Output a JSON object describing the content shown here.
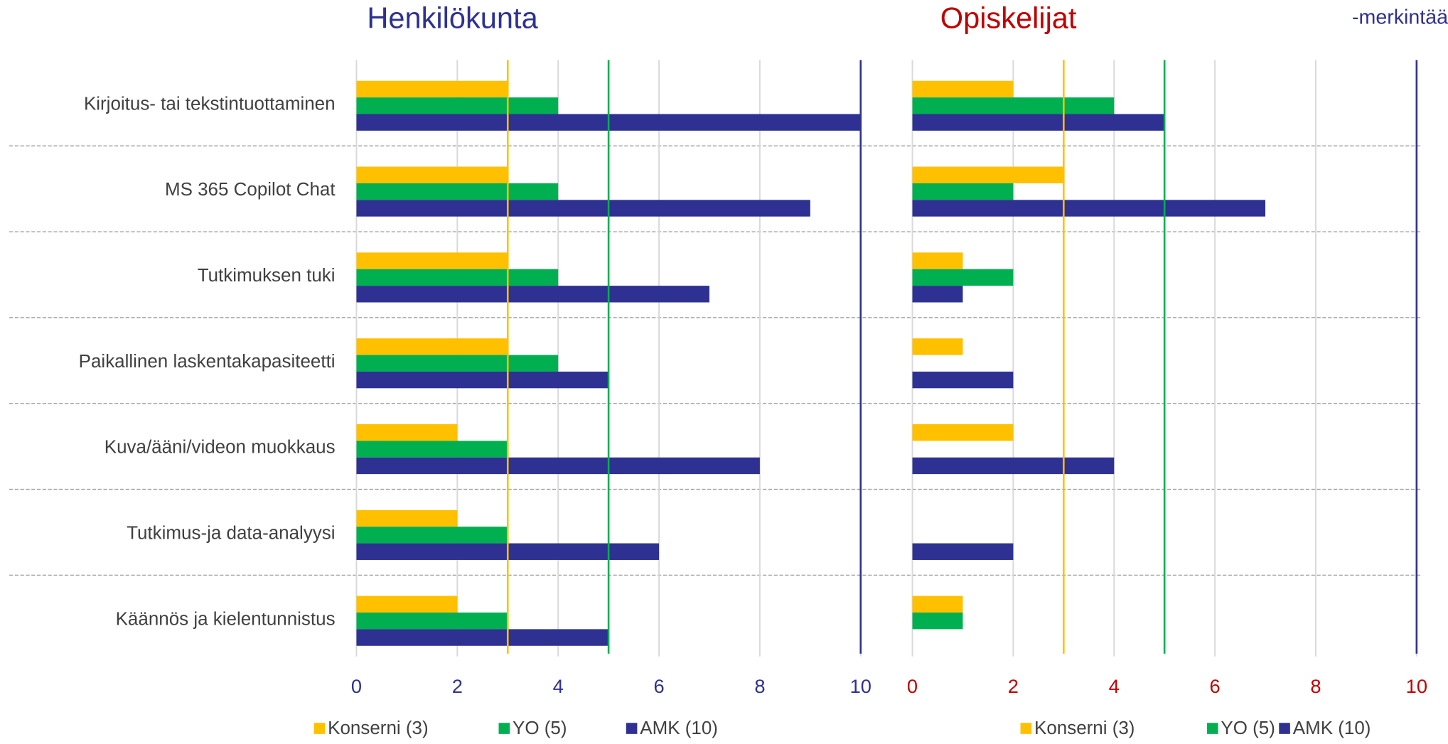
{
  "chart_data": [
    {
      "type": "bar",
      "orientation": "horizontal",
      "title": "Henkilökunta",
      "title_color": "#2e3192",
      "tick_color": "#2e3192",
      "categories": [
        "Kirjoitus- tai tekstintuottaminen",
        "MS 365 Copilot Chat",
        "Tutkimuksen tuki",
        "Paikallinen laskentakapasiteetti",
        "Kuva/ääni/videon muokkaus",
        "Tutkimus-ja data-analyysi",
        "Käännös ja kielentunnistus"
      ],
      "series": [
        {
          "name": "Konserni (3)",
          "color": "#ffc000",
          "line": 3,
          "values": [
            3,
            3,
            3,
            3,
            2,
            2,
            2
          ]
        },
        {
          "name": "YO (5)",
          "color": "#00b050",
          "line": 5,
          "values": [
            4,
            4,
            4,
            4,
            3,
            3,
            3
          ]
        },
        {
          "name": "AMK (10)",
          "color": "#2e3192",
          "line": 10,
          "values": [
            10,
            9,
            7,
            5,
            8,
            6,
            5
          ]
        }
      ],
      "xlim": [
        0,
        10
      ],
      "xticks": [
        0,
        2,
        4,
        6,
        8,
        10
      ],
      "grid": true
    },
    {
      "type": "bar",
      "orientation": "horizontal",
      "title": "Opiskelijat",
      "title_color": "#c00000",
      "tick_color": "#c00000",
      "series": [
        {
          "name": "Konserni (3)",
          "color": "#ffc000",
          "line": 3,
          "values": [
            2,
            3,
            1,
            1,
            2,
            0,
            1
          ]
        },
        {
          "name": "YO (5)",
          "color": "#00b050",
          "line": 5,
          "values": [
            4,
            2,
            2,
            0,
            0,
            0,
            1
          ]
        },
        {
          "name": "AMK (10)",
          "color": "#2e3192",
          "line": 10,
          "values": [
            5,
            7,
            1,
            2,
            4,
            2,
            0
          ]
        }
      ],
      "xlim": [
        0,
        10
      ],
      "xticks": [
        0,
        2,
        4,
        6,
        8,
        10
      ],
      "grid": true
    }
  ],
  "annotation": "-merkintää"
}
